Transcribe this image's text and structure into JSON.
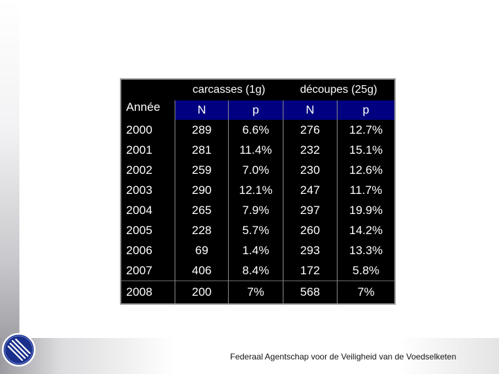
{
  "table": {
    "group_headers": [
      "carcasses (1g)",
      "découpes (25g)"
    ],
    "year_header": "Année",
    "sub_headers": [
      "N",
      "p",
      "N",
      "p"
    ],
    "rows": [
      {
        "year": "2000",
        "c_n": "289",
        "c_p": "6.6%",
        "d_n": "276",
        "d_p": "12.7%"
      },
      {
        "year": "2001",
        "c_n": "281",
        "c_p": "11.4%",
        "d_n": "232",
        "d_p": "15.1%"
      },
      {
        "year": "2002",
        "c_n": "259",
        "c_p": "7.0%",
        "d_n": "230",
        "d_p": "12.6%"
      },
      {
        "year": "2003",
        "c_n": "290",
        "c_p": "12.1%",
        "d_n": "247",
        "d_p": "11.7%"
      },
      {
        "year": "2004",
        "c_n": "265",
        "c_p": "7.9%",
        "d_n": "297",
        "d_p": "19.9%"
      },
      {
        "year": "2005",
        "c_n": "228",
        "c_p": "5.7%",
        "d_n": "260",
        "d_p": "14.2%"
      },
      {
        "year": "2006",
        "c_n": "69",
        "c_p": "1.4%",
        "d_n": "293",
        "d_p": "13.3%"
      },
      {
        "year": "2007",
        "c_n": "406",
        "c_p": "8.4%",
        "d_n": "172",
        "d_p": "5.8%"
      },
      {
        "year": "2008",
        "c_n": "200",
        "c_p": "7%",
        "d_n": "568",
        "d_p": "7%"
      }
    ]
  },
  "footer": {
    "agency_name": "Federaal Agentschap voor de Veiligheid van de Voedselketen",
    "logo_icon": "fork-knife-logo-icon"
  }
}
